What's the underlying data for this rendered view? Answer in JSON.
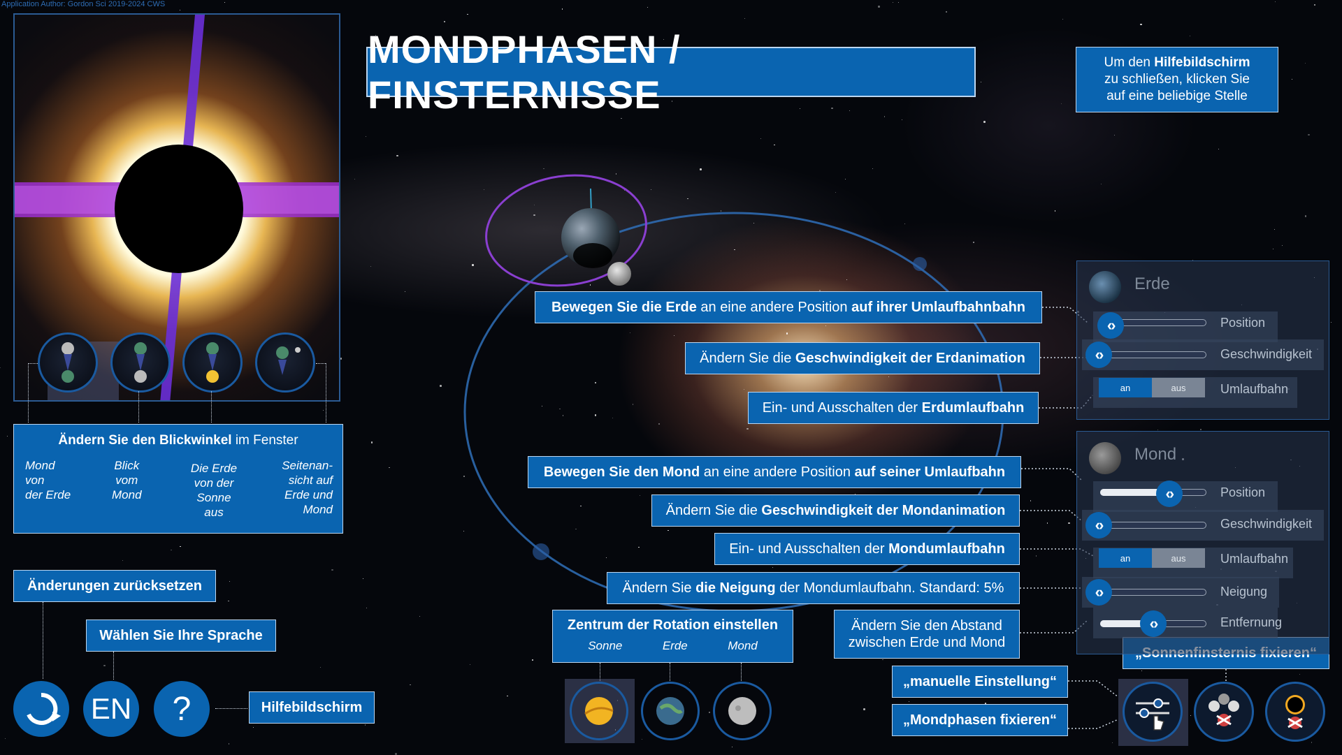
{
  "credit": "Application Author: Gordon Sci 2019-2024 CWS",
  "title": "MONDPHASEN / FINSTERNISSE",
  "help_close": {
    "line1_pre": "Um den ",
    "line1_bold": "Hilfebildschirm",
    "line2": "zu schließen, klicken Sie",
    "line3": "auf eine beliebige Stelle"
  },
  "view_panel": {
    "head_bold": "Ändern Sie den Blickwinkel",
    "head_rest": " im Fenster",
    "labels": [
      [
        "Mond",
        "von",
        "der Erde"
      ],
      [
        "Blick",
        "vom",
        "Mond"
      ],
      [
        "Die Erde",
        "von der",
        "Sonne",
        "aus"
      ],
      [
        "Seitenan-",
        "sicht auf",
        "Erde und",
        "Mond"
      ]
    ]
  },
  "reset_label": "Änderungen zurücksetzen",
  "language_label": "Wählen Sie Ihre Sprache",
  "language_btn": "EN",
  "help_btn": "?",
  "help_label": "Hilfebildschirm",
  "callouts": {
    "earth_pos": [
      "Bewegen Sie die Erde",
      " an eine andere Position ",
      "auf ihrer Umlaufbahnbahn"
    ],
    "earth_speed": [
      "Ändern Sie die ",
      "Geschwindigkeit der Erdanimation"
    ],
    "earth_orbit": [
      "Ein- und Ausschalten der ",
      "Erdumlaufbahn"
    ],
    "moon_pos": [
      "Bewegen Sie den Mond",
      " an eine andere Position ",
      "auf seiner Umlaufbahn"
    ],
    "moon_speed": [
      "Ändern Sie die ",
      "Geschwindigkeit der Mondanimation"
    ],
    "moon_orbit": [
      "Ein- und Ausschalten der ",
      "Mondumlaufbahn"
    ],
    "moon_tilt": [
      "Ändern Sie ",
      "die Neigung",
      " der Mondumlaufbahn. Standard: 5%"
    ],
    "distance": [
      "Ändern Sie den Abstand",
      "zwischen Erde und Mond"
    ]
  },
  "rotation_center": {
    "head": "Zentrum der Rotation einstellen",
    "options": [
      "Sonne",
      "Erde",
      "Mond"
    ]
  },
  "modes": {
    "manual": "„manuelle Einstellung“",
    "phases": "„Mondphasen fixieren“",
    "eclipse": "„Sonnenfinsternis fixieren“"
  },
  "earth_panel": {
    "title": "Erde",
    "position": "Position",
    "speed": "Geschwindigkeit",
    "orbit": "Umlaufbahn",
    "on": "an",
    "off": "aus",
    "position_value": 0.1,
    "speed_value": 0.0
  },
  "moon_panel": {
    "title": "Mond",
    "position": "Position",
    "speed": "Geschwindigkeit",
    "orbit": "Umlaufbahn",
    "tilt": "Neigung",
    "distance": "Entfernung",
    "on": "an",
    "off": "aus",
    "position_value": 0.65,
    "speed_value": 0.0,
    "tilt_value": 0.0,
    "distance_value": 0.5
  }
}
